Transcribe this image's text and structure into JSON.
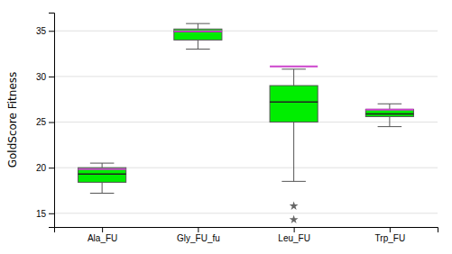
{
  "chart_data": {
    "type": "box",
    "y_label": "GoldScore Fitness",
    "categories": [
      "Ala_FU",
      "Gly_FU_fu",
      "Leu_FU",
      "Trp_FU"
    ],
    "series": [
      {
        "type": "box",
        "color": "#00EE00",
        "marker": "star",
        "values": [
          {
            "whislo": 17.2,
            "q1": 18.4,
            "med": 19.3,
            "q3": 20.0,
            "whishi": 20.5,
            "fliers": []
          },
          {
            "whislo": 33.0,
            "q1": 34.0,
            "med": 34.9,
            "q3": 35.2,
            "whishi": 35.8,
            "fliers": []
          },
          {
            "whislo": 18.5,
            "q1": 25.0,
            "med": 27.2,
            "q3": 29.0,
            "whishi": 30.8,
            "fliers": [
              15.8,
              14.3
            ]
          },
          {
            "whislo": 24.5,
            "q1": 25.6,
            "med": 25.9,
            "q3": 26.4,
            "whishi": 27.0,
            "fliers": []
          }
        ]
      },
      {
        "type": "hline",
        "color": "#CC44CC",
        "values": [
          19.85,
          34.95,
          31.1,
          26.35
        ]
      }
    ],
    "ylim": [
      13.5,
      37.0
    ],
    "yticks": [
      15,
      20,
      25,
      30,
      35
    ],
    "grid": true
  }
}
